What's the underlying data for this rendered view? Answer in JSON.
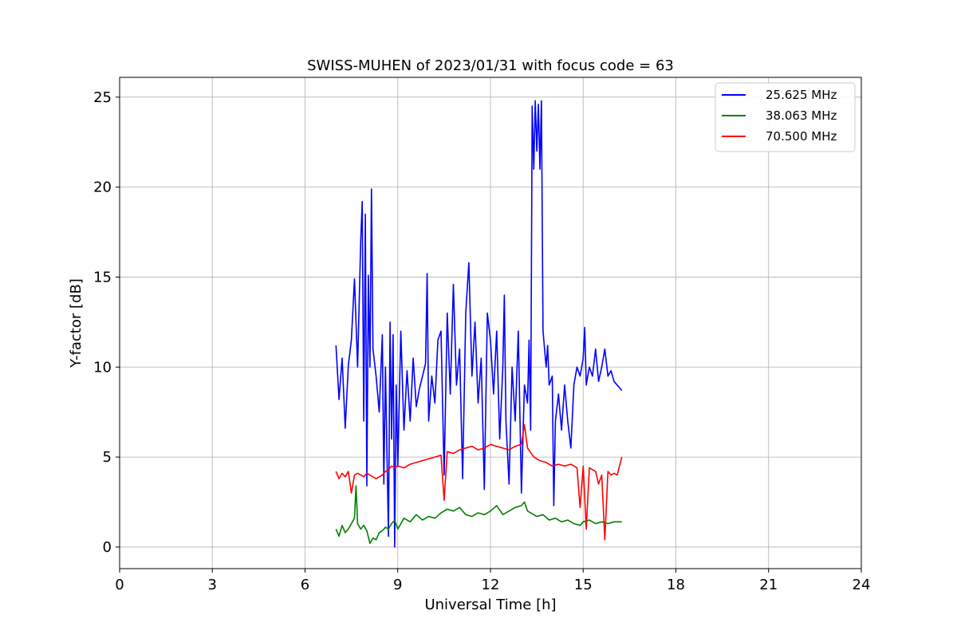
{
  "chart_data": {
    "type": "line",
    "title": "SWISS-MUHEN of 2023/01/31 with focus code = 63",
    "xlabel": "Universal Time [h]",
    "ylabel": "Y-factor [dB]",
    "xlim": [
      0,
      24
    ],
    "ylim": [
      -1.2,
      26.1
    ],
    "xticks": [
      0,
      3,
      6,
      9,
      12,
      15,
      18,
      21,
      24
    ],
    "yticks": [
      0,
      5,
      10,
      15,
      20,
      25
    ],
    "grid": true,
    "legend_position": "top-right",
    "series": [
      {
        "name": "25.625 MHz",
        "color": "#0000ff",
        "points": [
          [
            7.0,
            11.2
          ],
          [
            7.1,
            8.2
          ],
          [
            7.2,
            10.5
          ],
          [
            7.3,
            6.6
          ],
          [
            7.4,
            10.1
          ],
          [
            7.5,
            11.5
          ],
          [
            7.6,
            14.9
          ],
          [
            7.7,
            10.0
          ],
          [
            7.8,
            17.0
          ],
          [
            7.85,
            19.2
          ],
          [
            7.9,
            7.0
          ],
          [
            7.95,
            18.5
          ],
          [
            8.0,
            3.4
          ],
          [
            8.05,
            15.1
          ],
          [
            8.1,
            10.0
          ],
          [
            8.15,
            19.9
          ],
          [
            8.2,
            11.0
          ],
          [
            8.3,
            9.5
          ],
          [
            8.4,
            7.5
          ],
          [
            8.5,
            11.8
          ],
          [
            8.55,
            3.5
          ],
          [
            8.6,
            10.0
          ],
          [
            8.7,
            0.6
          ],
          [
            8.75,
            12.5
          ],
          [
            8.8,
            6.0
          ],
          [
            8.85,
            11.8
          ],
          [
            8.9,
            0.0
          ],
          [
            8.95,
            9.0
          ],
          [
            9.0,
            4.5
          ],
          [
            9.1,
            12.0
          ],
          [
            9.2,
            6.5
          ],
          [
            9.3,
            9.8
          ],
          [
            9.4,
            7.0
          ],
          [
            9.5,
            10.5
          ],
          [
            9.6,
            7.8
          ],
          [
            9.7,
            8.8
          ],
          [
            9.8,
            9.5
          ],
          [
            9.9,
            10.2
          ],
          [
            9.95,
            15.2
          ],
          [
            10.0,
            7.0
          ],
          [
            10.1,
            9.5
          ],
          [
            10.2,
            8.0
          ],
          [
            10.3,
            11.5
          ],
          [
            10.4,
            12.0
          ],
          [
            10.5,
            4.0
          ],
          [
            10.6,
            13.0
          ],
          [
            10.7,
            8.5
          ],
          [
            10.8,
            14.6
          ],
          [
            10.9,
            9.0
          ],
          [
            11.0,
            11.0
          ],
          [
            11.1,
            3.8
          ],
          [
            11.2,
            13.0
          ],
          [
            11.3,
            15.8
          ],
          [
            11.4,
            9.5
          ],
          [
            11.5,
            12.5
          ],
          [
            11.6,
            8.0
          ],
          [
            11.7,
            10.5
          ],
          [
            11.8,
            3.2
          ],
          [
            11.9,
            13.0
          ],
          [
            12.0,
            11.5
          ],
          [
            12.1,
            8.5
          ],
          [
            12.2,
            12.0
          ],
          [
            12.3,
            6.0
          ],
          [
            12.4,
            10.0
          ],
          [
            12.45,
            14.0
          ],
          [
            12.5,
            7.0
          ],
          [
            12.6,
            3.5
          ],
          [
            12.7,
            10.0
          ],
          [
            12.8,
            7.0
          ],
          [
            12.9,
            12.0
          ],
          [
            13.0,
            3.0
          ],
          [
            13.1,
            9.0
          ],
          [
            13.2,
            8.0
          ],
          [
            13.25,
            11.5
          ],
          [
            13.3,
            6.5
          ],
          [
            13.35,
            24.5
          ],
          [
            13.4,
            21.0
          ],
          [
            13.45,
            24.8
          ],
          [
            13.5,
            22.0
          ],
          [
            13.55,
            24.6
          ],
          [
            13.6,
            21.0
          ],
          [
            13.65,
            24.8
          ],
          [
            13.7,
            12.0
          ],
          [
            13.8,
            10.0
          ],
          [
            13.85,
            11.2
          ],
          [
            13.9,
            9.0
          ],
          [
            14.0,
            9.5
          ],
          [
            14.05,
            2.3
          ],
          [
            14.1,
            7.0
          ],
          [
            14.2,
            8.5
          ],
          [
            14.3,
            6.5
          ],
          [
            14.4,
            9.0
          ],
          [
            14.5,
            7.0
          ],
          [
            14.6,
            5.5
          ],
          [
            14.7,
            9.0
          ],
          [
            14.8,
            10.0
          ],
          [
            14.9,
            9.5
          ],
          [
            15.0,
            10.5
          ],
          [
            15.05,
            12.2
          ],
          [
            15.1,
            9.0
          ],
          [
            15.2,
            10.0
          ],
          [
            15.3,
            9.5
          ],
          [
            15.4,
            11.0
          ],
          [
            15.5,
            9.2
          ],
          [
            15.6,
            10.0
          ],
          [
            15.7,
            11.0
          ],
          [
            15.8,
            9.5
          ],
          [
            15.9,
            9.8
          ],
          [
            16.0,
            9.2
          ],
          [
            16.1,
            9.0
          ],
          [
            16.25,
            8.7
          ]
        ]
      },
      {
        "name": "38.063 MHz",
        "color": "#008000",
        "points": [
          [
            7.0,
            1.0
          ],
          [
            7.1,
            0.6
          ],
          [
            7.2,
            1.2
          ],
          [
            7.3,
            0.8
          ],
          [
            7.4,
            1.0
          ],
          [
            7.5,
            1.3
          ],
          [
            7.6,
            1.6
          ],
          [
            7.65,
            3.4
          ],
          [
            7.7,
            1.3
          ],
          [
            7.8,
            1.0
          ],
          [
            7.9,
            1.2
          ],
          [
            8.0,
            0.9
          ],
          [
            8.1,
            0.2
          ],
          [
            8.2,
            0.5
          ],
          [
            8.3,
            0.4
          ],
          [
            8.4,
            0.8
          ],
          [
            8.5,
            0.9
          ],
          [
            8.6,
            1.1
          ],
          [
            8.7,
            1.0
          ],
          [
            8.8,
            1.3
          ],
          [
            8.9,
            1.5
          ],
          [
            9.0,
            1.0
          ],
          [
            9.2,
            1.6
          ],
          [
            9.4,
            1.4
          ],
          [
            9.6,
            1.8
          ],
          [
            9.8,
            1.5
          ],
          [
            10.0,
            1.7
          ],
          [
            10.2,
            1.6
          ],
          [
            10.4,
            1.9
          ],
          [
            10.6,
            2.1
          ],
          [
            10.8,
            2.0
          ],
          [
            11.0,
            2.2
          ],
          [
            11.2,
            1.8
          ],
          [
            11.4,
            1.7
          ],
          [
            11.6,
            1.9
          ],
          [
            11.8,
            1.8
          ],
          [
            12.0,
            2.0
          ],
          [
            12.2,
            2.3
          ],
          [
            12.4,
            1.8
          ],
          [
            12.6,
            2.0
          ],
          [
            12.8,
            2.2
          ],
          [
            13.0,
            2.3
          ],
          [
            13.1,
            2.5
          ],
          [
            13.2,
            2.0
          ],
          [
            13.3,
            1.9
          ],
          [
            13.5,
            1.7
          ],
          [
            13.7,
            1.8
          ],
          [
            13.9,
            1.5
          ],
          [
            14.1,
            1.6
          ],
          [
            14.3,
            1.4
          ],
          [
            14.5,
            1.5
          ],
          [
            14.7,
            1.3
          ],
          [
            14.9,
            1.2
          ],
          [
            15.0,
            1.4
          ],
          [
            15.2,
            1.5
          ],
          [
            15.4,
            1.3
          ],
          [
            15.6,
            1.4
          ],
          [
            15.8,
            1.3
          ],
          [
            16.0,
            1.4
          ],
          [
            16.25,
            1.4
          ]
        ]
      },
      {
        "name": "70.500 MHz",
        "color": "#ff0000",
        "points": [
          [
            7.0,
            4.2
          ],
          [
            7.1,
            3.8
          ],
          [
            7.2,
            4.1
          ],
          [
            7.3,
            3.9
          ],
          [
            7.4,
            4.2
          ],
          [
            7.5,
            3.0
          ],
          [
            7.6,
            4.0
          ],
          [
            7.7,
            4.1
          ],
          [
            7.8,
            4.0
          ],
          [
            7.9,
            3.9
          ],
          [
            8.0,
            4.1
          ],
          [
            8.1,
            4.0
          ],
          [
            8.2,
            3.9
          ],
          [
            8.3,
            3.8
          ],
          [
            8.4,
            3.9
          ],
          [
            8.5,
            4.0
          ],
          [
            8.6,
            4.2
          ],
          [
            8.7,
            4.3
          ],
          [
            8.8,
            4.5
          ],
          [
            8.9,
            4.4
          ],
          [
            9.0,
            4.5
          ],
          [
            9.2,
            4.4
          ],
          [
            9.4,
            4.6
          ],
          [
            9.6,
            4.7
          ],
          [
            9.8,
            4.8
          ],
          [
            10.0,
            4.9
          ],
          [
            10.2,
            5.0
          ],
          [
            10.4,
            5.1
          ],
          [
            10.5,
            2.6
          ],
          [
            10.6,
            5.3
          ],
          [
            10.8,
            5.2
          ],
          [
            11.0,
            5.4
          ],
          [
            11.2,
            5.5
          ],
          [
            11.4,
            5.6
          ],
          [
            11.6,
            5.4
          ],
          [
            11.8,
            5.5
          ],
          [
            12.0,
            5.7
          ],
          [
            12.2,
            5.6
          ],
          [
            12.4,
            5.5
          ],
          [
            12.6,
            5.4
          ],
          [
            12.8,
            5.6
          ],
          [
            13.0,
            5.7
          ],
          [
            13.1,
            6.8
          ],
          [
            13.2,
            5.5
          ],
          [
            13.4,
            5.0
          ],
          [
            13.6,
            4.8
          ],
          [
            13.8,
            4.7
          ],
          [
            14.0,
            4.5
          ],
          [
            14.2,
            4.6
          ],
          [
            14.4,
            4.5
          ],
          [
            14.6,
            4.6
          ],
          [
            14.8,
            4.4
          ],
          [
            14.9,
            2.2
          ],
          [
            15.0,
            4.5
          ],
          [
            15.1,
            1.0
          ],
          [
            15.2,
            4.4
          ],
          [
            15.4,
            4.2
          ],
          [
            15.5,
            3.5
          ],
          [
            15.6,
            4.0
          ],
          [
            15.7,
            0.4
          ],
          [
            15.8,
            4.2
          ],
          [
            15.9,
            4.0
          ],
          [
            16.0,
            4.1
          ],
          [
            16.1,
            4.0
          ],
          [
            16.25,
            5.0
          ]
        ]
      }
    ]
  }
}
